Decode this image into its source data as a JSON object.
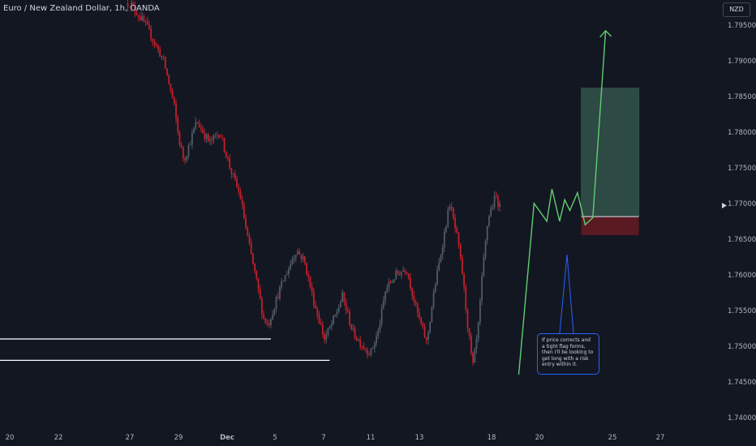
{
  "header": {
    "title": "Euro / New Zealand Dollar, 1h, OANDA",
    "currency": "NZD"
  },
  "annotation": {
    "text": "If price corrects and a tight flag forms, then I'll be looking to get long with a risk entry within it."
  },
  "colors": {
    "background": "#131722",
    "up_candle": "#4f5b66",
    "down_candle": "#c2202b",
    "projection": "#5fcf70",
    "long_target_zone": "#2e4a45",
    "long_stop_zone": "#5a1a22",
    "support_line": "#ffffff",
    "callout_border": "#2962ff",
    "callout_arrow": "#2962ff"
  },
  "chart_data": {
    "type": "candlestick",
    "y_axis": {
      "range": [
        1.7385,
        1.7985
      ],
      "tick_labels": [
        "1.79500",
        "1.79000",
        "1.78500",
        "1.78000",
        "1.77500",
        "1.77000",
        "1.76500",
        "1.76000",
        "1.75500",
        "1.75000",
        "1.74500",
        "1.74000"
      ],
      "tick_values": [
        1.795,
        1.79,
        1.785,
        1.78,
        1.775,
        1.77,
        1.765,
        1.76,
        1.755,
        1.75,
        1.745,
        1.74
      ],
      "current_price_marker": 1.7697
    },
    "x_axis": {
      "tick_labels": [
        "20",
        "22",
        "27",
        "29",
        "Dec",
        "5",
        "7",
        "11",
        "13",
        "18",
        "20",
        "25",
        "27"
      ],
      "bold_labels": [
        "Dec"
      ]
    },
    "price_path": [
      [
        0.0,
        1.7985
      ],
      [
        5.1,
        1.798
      ],
      [
        5.7,
        1.795
      ],
      [
        6.4,
        1.79
      ],
      [
        6.8,
        1.784
      ],
      [
        7.0,
        1.779
      ],
      [
        7.2,
        1.776
      ],
      [
        7.7,
        1.7815
      ],
      [
        8.2,
        1.7785
      ],
      [
        8.6,
        1.78
      ],
      [
        9.0,
        1.775
      ],
      [
        9.4,
        1.771
      ],
      [
        9.7,
        1.765
      ],
      [
        10.1,
        1.758
      ],
      [
        10.3,
        1.754
      ],
      [
        10.5,
        1.753
      ],
      [
        10.9,
        1.7575
      ],
      [
        11.3,
        1.761
      ],
      [
        11.6,
        1.7635
      ],
      [
        11.9,
        1.762
      ],
      [
        12.3,
        1.756
      ],
      [
        12.7,
        1.751
      ],
      [
        13.1,
        1.754
      ],
      [
        13.4,
        1.757
      ],
      [
        13.8,
        1.752
      ],
      [
        14.2,
        1.75
      ],
      [
        14.5,
        1.749
      ],
      [
        14.8,
        1.752
      ],
      [
        15.1,
        1.758
      ],
      [
        15.5,
        1.76
      ],
      [
        15.9,
        1.761
      ],
      [
        16.3,
        1.755
      ],
      [
        16.7,
        1.7505
      ],
      [
        17.0,
        1.758
      ],
      [
        17.3,
        1.764
      ],
      [
        17.6,
        1.77
      ],
      [
        17.9,
        1.765
      ],
      [
        18.1,
        1.76
      ],
      [
        18.3,
        1.753
      ],
      [
        18.5,
        1.747
      ],
      [
        18.7,
        1.752
      ],
      [
        18.9,
        1.761
      ],
      [
        19.1,
        1.768
      ],
      [
        19.4,
        1.771
      ],
      [
        19.6,
        1.769
      ]
    ],
    "support_levels": [
      {
        "price": 1.751,
        "x_end": 10.6
      },
      {
        "price": 1.748,
        "x_end": 12.9
      }
    ],
    "projection_path": [
      [
        20.3,
        1.746
      ],
      [
        20.9,
        1.77
      ],
      [
        21.4,
        1.7675
      ],
      [
        21.6,
        1.772
      ],
      [
        21.9,
        1.7675
      ],
      [
        22.1,
        1.7705
      ],
      [
        22.3,
        1.769
      ],
      [
        22.6,
        1.7715
      ],
      [
        22.9,
        1.767
      ],
      [
        23.2,
        1.768
      ],
      [
        23.7,
        1.7942
      ]
    ],
    "long_position": {
      "entry": 1.76815,
      "target": 1.78615,
      "stop": 1.76555,
      "x_start": 22.75,
      "x_end": 25.0
    }
  }
}
